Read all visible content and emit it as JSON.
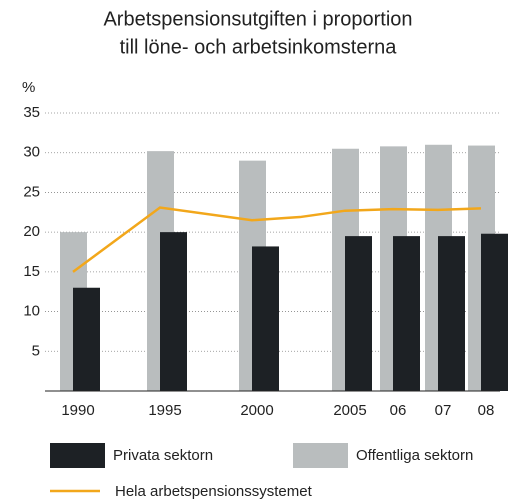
{
  "chart_data": {
    "type": "bar",
    "title": [
      "Arbetspensionsutgiften i proportion",
      "till löne- och arbetsinkomsterna"
    ],
    "y_label": "%",
    "categories": [
      "1990",
      "1995",
      "2000",
      null,
      "2005",
      "06",
      "07",
      "08"
    ],
    "series": [
      {
        "name": "Offentliga sektorn",
        "color": "#b9bdbe",
        "type": "bar",
        "values": [
          20,
          30.2,
          29,
          null,
          30.5,
          30.8,
          31,
          30.9
        ]
      },
      {
        "name": "Privata sektorn",
        "color": "#1d2125",
        "type": "bar",
        "values": [
          13,
          20,
          18.2,
          null,
          19.5,
          19.5,
          19.5,
          19.8
        ]
      },
      {
        "name": "Hela arbetspensionssystemet",
        "color": "#f2a71b",
        "type": "line",
        "values": [
          15,
          23.1,
          21.5,
          21.9,
          22.7,
          22.9,
          22.8,
          23
        ]
      }
    ],
    "ylim": [
      0,
      35
    ],
    "yticks": [
      5,
      10,
      15,
      20,
      25,
      30,
      35
    ],
    "grid": true
  }
}
